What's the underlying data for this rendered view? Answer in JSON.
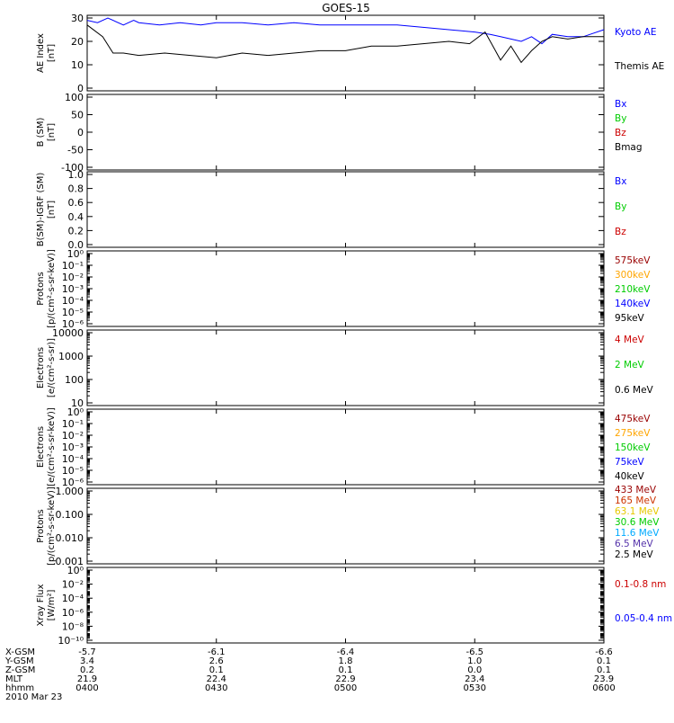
{
  "title": "GOES-15",
  "colors": {
    "black": "#000000",
    "blue": "#0000ff",
    "green": "#00cc00",
    "red": "#cc0000",
    "darkred": "#990000",
    "orange": "#ffa500",
    "gold": "#e6c800",
    "cyan": "#00aaff",
    "lightgreen": "#00e060",
    "purple": "#5533aa"
  },
  "chart_data": [
    {
      "type": "line",
      "ylabel": [
        "AE Index",
        "[nT]"
      ],
      "ylim": [
        0,
        30
      ],
      "yticks": [
        "0",
        "10",
        "20",
        "30"
      ],
      "ytick_values": [
        0,
        10,
        20,
        30
      ],
      "legend": [
        {
          "name": "Kyoto AE",
          "color": "#0000ff"
        },
        {
          "name": "Themis AE",
          "color": "#000000"
        }
      ],
      "series": [
        {
          "name": "Kyoto AE",
          "color": "#0000ff",
          "x": [
            0,
            0.02,
            0.04,
            0.07,
            0.09,
            0.1,
            0.14,
            0.18,
            0.22,
            0.25,
            0.3,
            0.35,
            0.4,
            0.45,
            0.5,
            0.55,
            0.6,
            0.65,
            0.7,
            0.75,
            0.78,
            0.8,
            0.82,
            0.84,
            0.86,
            0.88,
            0.9,
            0.93,
            0.96,
            1.0
          ],
          "y": [
            29,
            28,
            30,
            27,
            29,
            28,
            27,
            28,
            27,
            28,
            28,
            27,
            28,
            27,
            27,
            27,
            27,
            26,
            25,
            24,
            23,
            22,
            21,
            20,
            22,
            19,
            23,
            22,
            22,
            25
          ]
        },
        {
          "name": "Themis AE",
          "color": "#000000",
          "x": [
            0,
            0.03,
            0.05,
            0.07,
            0.1,
            0.15,
            0.2,
            0.25,
            0.3,
            0.35,
            0.4,
            0.45,
            0.5,
            0.55,
            0.6,
            0.65,
            0.7,
            0.74,
            0.77,
            0.79,
            0.8,
            0.82,
            0.84,
            0.86,
            0.88,
            0.9,
            0.93,
            0.96,
            1.0
          ],
          "y": [
            27,
            22,
            15,
            15,
            14,
            15,
            14,
            13,
            15,
            14,
            15,
            16,
            16,
            18,
            18,
            19,
            20,
            19,
            24,
            16,
            12,
            18,
            11,
            16,
            20,
            22,
            21,
            22,
            22
          ]
        }
      ]
    },
    {
      "type": "line",
      "ylabel": [
        "B (SM)",
        "[nT]"
      ],
      "ylim": [
        -100,
        100
      ],
      "yticks": [
        "-100",
        "-50",
        "0",
        "50",
        "100"
      ],
      "ytick_values": [
        -100,
        -50,
        0,
        50,
        100
      ],
      "legend": [
        {
          "name": "Bx",
          "color": "#0000ff"
        },
        {
          "name": "By",
          "color": "#00cc00"
        },
        {
          "name": "Bz",
          "color": "#cc0000"
        },
        {
          "name": "Bmag",
          "color": "#000000"
        }
      ]
    },
    {
      "type": "line",
      "ylabel": [
        "B(SM)-IGRF (SM)",
        "[nT]"
      ],
      "ylim": [
        0,
        1
      ],
      "yticks": [
        "0.0",
        "0.2",
        "0.4",
        "0.6",
        "0.8",
        "1.0"
      ],
      "ytick_values": [
        0,
        0.2,
        0.4,
        0.6,
        0.8,
        1.0
      ],
      "legend": [
        {
          "name": "Bx",
          "color": "#0000ff"
        },
        {
          "name": "By",
          "color": "#00cc00"
        },
        {
          "name": "Bz",
          "color": "#cc0000"
        }
      ]
    },
    {
      "type": "line",
      "scale": "log",
      "ylabel": [
        "Protons",
        "[p/(cm²-s-sr-keV)]"
      ],
      "ylim": [
        1e-06,
        1
      ],
      "yticks": [
        "10⁰",
        "10⁻¹",
        "10⁻²",
        "10⁻³",
        "10⁻⁴",
        "10⁻⁵",
        "10⁻⁶"
      ],
      "ytick_values": [
        1,
        0.1,
        0.01,
        0.001,
        0.0001,
        1e-05,
        1e-06
      ],
      "legend": [
        {
          "name": "575keV",
          "color": "#990000"
        },
        {
          "name": "300keV",
          "color": "#ffa500"
        },
        {
          "name": "210keV",
          "color": "#00cc00"
        },
        {
          "name": "140keV",
          "color": "#0000ff"
        },
        {
          "name": "95keV",
          "color": "#000000"
        }
      ]
    },
    {
      "type": "line",
      "scale": "log",
      "ylabel": [
        "Electrons",
        "[e/(cm²-s-sr)]"
      ],
      "ylim": [
        10,
        10000
      ],
      "yticks": [
        "10000",
        "1000",
        "100",
        "10"
      ],
      "ytick_values": [
        10000,
        1000,
        100,
        10
      ],
      "legend": [
        {
          "name": "4 MeV",
          "color": "#cc0000"
        },
        {
          "name": "2 MeV",
          "color": "#00cc00"
        },
        {
          "name": "0.6 MeV",
          "color": "#000000"
        }
      ]
    },
    {
      "type": "line",
      "scale": "log",
      "ylabel": [
        "Electrons",
        "[e/(cm²-s-sr-keV)]"
      ],
      "ylim": [
        1e-06,
        1
      ],
      "yticks": [
        "10⁰",
        "10⁻¹",
        "10⁻²",
        "10⁻³",
        "10⁻⁴",
        "10⁻⁵",
        "10⁻⁶"
      ],
      "ytick_values": [
        1,
        0.1,
        0.01,
        0.001,
        0.0001,
        1e-05,
        1e-06
      ],
      "legend": [
        {
          "name": "475keV",
          "color": "#990000"
        },
        {
          "name": "275keV",
          "color": "#ffa500"
        },
        {
          "name": "150keV",
          "color": "#00cc00"
        },
        {
          "name": "75keV",
          "color": "#0000ff"
        },
        {
          "name": "40keV",
          "color": "#000000"
        }
      ]
    },
    {
      "type": "line",
      "scale": "log",
      "ylabel": [
        "Protons",
        "[p/(cm²-s-sr-keV)]"
      ],
      "ylim": [
        0.001,
        1
      ],
      "yticks": [
        "1.000",
        "0.100",
        "0.010",
        "0.001"
      ],
      "ytick_values": [
        1,
        0.1,
        0.01,
        0.001
      ],
      "legend": [
        {
          "name": "433 MeV",
          "color": "#990000"
        },
        {
          "name": "165 MeV",
          "color": "#cc3300"
        },
        {
          "name": "63.1 MeV",
          "color": "#e6c800"
        },
        {
          "name": "30.6 MeV",
          "color": "#00cc00"
        },
        {
          "name": "11.6 MeV",
          "color": "#00aaff"
        },
        {
          "name": "6.5 MeV",
          "color": "#5533aa"
        },
        {
          "name": "2.5 MeV",
          "color": "#000000"
        }
      ]
    },
    {
      "type": "line",
      "scale": "log",
      "ylabel": [
        "Xray Flux",
        "[W/m²]"
      ],
      "ylim": [
        1e-10,
        1
      ],
      "yticks": [
        "10⁰",
        "10⁻²",
        "10⁻⁴",
        "10⁻⁶",
        "10⁻⁸",
        "10⁻¹⁰"
      ],
      "ytick_values": [
        1,
        0.01,
        0.0001,
        1e-06,
        1e-08,
        1e-10
      ],
      "legend": [
        {
          "name": "0.1-0.8 nm",
          "color": "#cc0000"
        },
        {
          "name": "0.05-0.4 nm",
          "color": "#0000ff"
        }
      ]
    }
  ],
  "x_axis": {
    "row_labels": [
      "X-GSM",
      "Y-GSM",
      "Z-GSM",
      "MLT",
      "hhmm",
      "2010 Mar 23"
    ],
    "ticks": [
      {
        "x": 0.0,
        "values": [
          "-5.7",
          "3.4",
          "0.2",
          "21.9",
          "0400"
        ]
      },
      {
        "x": 0.25,
        "values": [
          "-6.1",
          "2.6",
          "0.1",
          "22.4",
          "0430"
        ]
      },
      {
        "x": 0.5,
        "values": [
          "-6.4",
          "1.8",
          "0.1",
          "22.9",
          "0500"
        ]
      },
      {
        "x": 0.75,
        "values": [
          "-6.5",
          "1.0",
          "0.0",
          "23.4",
          "0530"
        ]
      },
      {
        "x": 1.0,
        "values": [
          "-6.6",
          "0.1",
          "0.1",
          "23.9",
          "0600"
        ]
      }
    ]
  }
}
